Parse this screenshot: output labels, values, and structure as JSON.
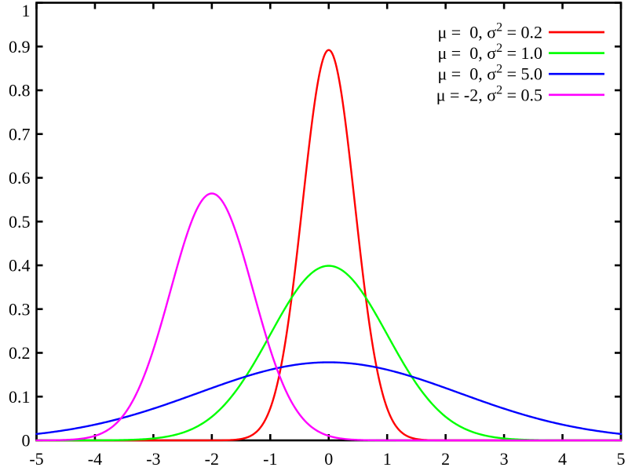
{
  "window": {
    "background": "#ffffff"
  },
  "chart_data": {
    "type": "line",
    "title": "",
    "xlabel": "",
    "ylabel": "",
    "xlim": [
      -5,
      5
    ],
    "ylim": [
      0,
      1
    ],
    "x_ticks": [
      -5,
      -4,
      -3,
      -2,
      -1,
      0,
      1,
      2,
      3,
      4,
      5
    ],
    "x_tick_labels": [
      "-5",
      "-4",
      "-3",
      "-2",
      "-1",
      "0",
      "1",
      "2",
      "3",
      "4",
      "5"
    ],
    "y_ticks": [
      0,
      0.1,
      0.2,
      0.3,
      0.4,
      0.5,
      0.6,
      0.7,
      0.8,
      0.9,
      1
    ],
    "y_tick_labels": [
      "0",
      "0.1",
      "0.2",
      "0.3",
      "0.4",
      "0.5",
      "0.6",
      "0.7",
      "0.8",
      "0.9",
      "1"
    ],
    "grid": false,
    "legend_position": "top-right-inside",
    "function": "normal_pdf",
    "axis_color": "#000000",
    "text_color": "#000000",
    "series": [
      {
        "name": "mu=0, sigma2=0.2",
        "mu": 0,
        "sigma2": 0.2,
        "peak": 0.892,
        "color": "#ff0000",
        "legend_pre": "μ =  0, σ",
        "legend_sup": "2",
        "legend_post": " = 0.2"
      },
      {
        "name": "mu=0, sigma2=1.0",
        "mu": 0,
        "sigma2": 1.0,
        "peak": 0.399,
        "color": "#00ff00",
        "legend_pre": "μ =  0, σ",
        "legend_sup": "2",
        "legend_post": " = 1.0"
      },
      {
        "name": "mu=0, sigma2=5.0",
        "mu": 0,
        "sigma2": 5.0,
        "peak": 0.178,
        "color": "#0000ff",
        "legend_pre": "μ =  0, σ",
        "legend_sup": "2",
        "legend_post": " = 5.0"
      },
      {
        "name": "mu=-2, sigma2=0.5",
        "mu": -2,
        "sigma2": 0.5,
        "peak": 0.564,
        "color": "#ff00ff",
        "legend_pre": "μ = -2, σ",
        "legend_sup": "2",
        "legend_post": " = 0.5"
      }
    ]
  }
}
